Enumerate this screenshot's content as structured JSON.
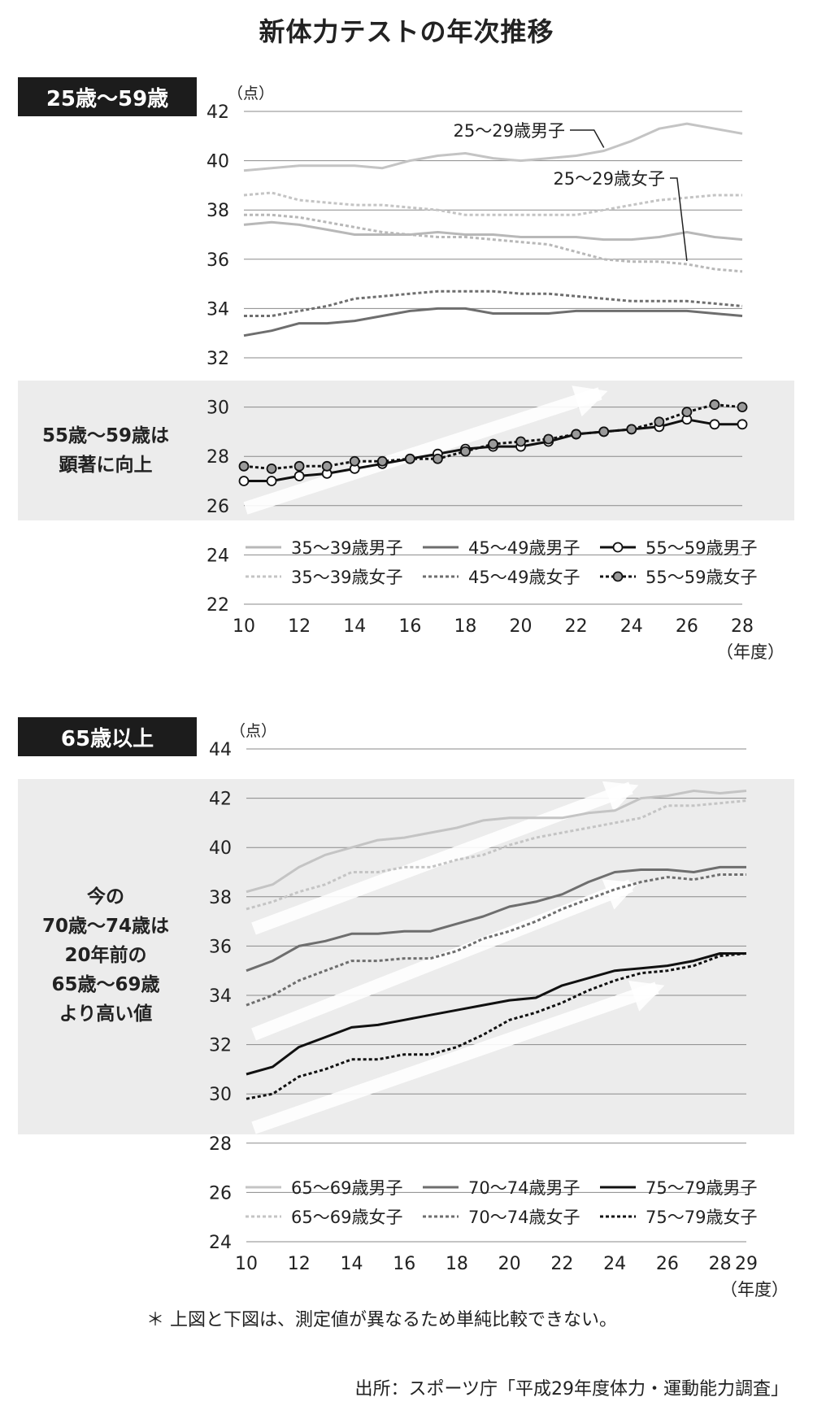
{
  "title": "新体力テストの年次推移",
  "note": "＊ 上図と下図は、測定値が異なるため単純比較できない。",
  "source": "出所：スポーツ庁「平成29年度体力・運動能力調査」",
  "chart_data": [
    {
      "type": "line",
      "panel_label": "25歳〜59歳",
      "callout": [
        "55歳〜59歳は",
        "顕著に向上"
      ],
      "ylabel": "（点）",
      "xlabel": "（年度）",
      "ylim": [
        22,
        42
      ],
      "yticks": [
        22,
        24,
        26,
        28,
        30,
        32,
        34,
        36,
        38,
        40,
        42
      ],
      "x": [
        10,
        11,
        12,
        13,
        14,
        15,
        16,
        17,
        18,
        19,
        20,
        21,
        22,
        23,
        24,
        25,
        26,
        27,
        28
      ],
      "xticks": [
        10,
        12,
        14,
        16,
        18,
        20,
        22,
        24,
        26,
        28
      ],
      "series": [
        {
          "name": "35〜39歳男子",
          "color": "#b8b8b8",
          "dash": "solid",
          "marker": "none",
          "values": [
            37.4,
            37.5,
            37.4,
            37.2,
            37.0,
            37.0,
            37.0,
            37.1,
            37.0,
            37.0,
            36.9,
            36.9,
            36.9,
            36.8,
            36.8,
            36.9,
            37.1,
            36.9,
            36.8
          ]
        },
        {
          "name": "45〜49歳男子",
          "color": "#6e6e6e",
          "dash": "solid",
          "marker": "none",
          "values": [
            32.9,
            33.1,
            33.4,
            33.4,
            33.5,
            33.7,
            33.9,
            34.0,
            34.0,
            33.8,
            33.8,
            33.8,
            33.9,
            33.9,
            33.9,
            33.9,
            33.9,
            33.8,
            33.7
          ]
        },
        {
          "name": "55〜59歳男子",
          "color": "#111111",
          "dash": "solid",
          "marker": "open",
          "values": [
            27.0,
            27.0,
            27.2,
            27.3,
            27.5,
            27.7,
            27.9,
            28.1,
            28.3,
            28.4,
            28.4,
            28.6,
            28.9,
            29.0,
            29.1,
            29.2,
            29.5,
            29.3,
            29.3
          ]
        },
        {
          "name": "35〜39歳女子",
          "color": "#c4c4c4",
          "dash": "dotted",
          "marker": "none",
          "values": [
            38.6,
            38.7,
            38.4,
            38.3,
            38.2,
            38.2,
            38.1,
            38.0,
            37.8,
            37.8,
            37.8,
            37.8,
            37.8,
            38.0,
            38.2,
            38.4,
            38.5,
            38.6,
            38.6
          ]
        },
        {
          "name": "45〜49歳女子",
          "color": "#6e6e6e",
          "dash": "dotted",
          "marker": "none",
          "values": [
            33.7,
            33.7,
            33.9,
            34.1,
            34.4,
            34.5,
            34.6,
            34.7,
            34.7,
            34.7,
            34.6,
            34.6,
            34.5,
            34.4,
            34.3,
            34.3,
            34.3,
            34.2,
            34.1
          ]
        },
        {
          "name": "55〜59歳女子",
          "color": "#111111",
          "dash": "dotted",
          "marker": "filled",
          "values": [
            27.6,
            27.5,
            27.6,
            27.6,
            27.8,
            27.8,
            27.9,
            27.9,
            28.2,
            28.5,
            28.6,
            28.7,
            28.9,
            29.0,
            29.1,
            29.4,
            29.8,
            30.1,
            30.0
          ]
        },
        {
          "name": "25〜29歳男子",
          "color": "#c4c4c4",
          "dash": "solid",
          "marker": "none",
          "values": [
            39.6,
            39.7,
            39.8,
            39.8,
            39.8,
            39.7,
            40.0,
            40.2,
            40.3,
            40.1,
            40.0,
            40.1,
            40.2,
            40.4,
            40.8,
            41.3,
            41.5,
            41.3,
            41.1
          ]
        },
        {
          "name": "25〜29歳女子",
          "color": "#b8b8b8",
          "dash": "dotted",
          "marker": "none",
          "values": [
            37.8,
            37.8,
            37.7,
            37.5,
            37.3,
            37.1,
            37.0,
            36.9,
            36.9,
            36.8,
            36.7,
            36.6,
            36.3,
            36.0,
            35.9,
            35.9,
            35.8,
            35.6,
            35.5
          ]
        }
      ],
      "legend": [
        "35〜39歳男子",
        "45〜49歳男子",
        "55〜59歳男子",
        "35〜39歳女子",
        "45〜49歳女子",
        "55〜59歳女子"
      ],
      "annotations": [
        {
          "text": "25〜29歳男子",
          "series": "25〜29歳男子"
        },
        {
          "text": "25〜29歳女子",
          "series": "25〜29歳女子"
        }
      ]
    },
    {
      "type": "line",
      "panel_label": "65歳以上",
      "callout": [
        "今の",
        "70歳〜74歳は",
        "20年前の",
        "65歳〜69歳",
        "より高い値"
      ],
      "ylabel": "（点）",
      "xlabel": "（年度）",
      "ylim": [
        24,
        44
      ],
      "yticks": [
        24,
        26,
        28,
        30,
        32,
        34,
        36,
        38,
        40,
        42,
        44
      ],
      "x": [
        10,
        11,
        12,
        13,
        14,
        15,
        16,
        17,
        18,
        19,
        20,
        21,
        22,
        23,
        24,
        25,
        26,
        27,
        28,
        29
      ],
      "xticks": [
        10,
        12,
        14,
        16,
        18,
        20,
        22,
        24,
        26,
        28,
        29
      ],
      "series": [
        {
          "name": "65〜69歳男子",
          "color": "#c4c4c4",
          "dash": "solid",
          "marker": "none",
          "values": [
            38.2,
            38.5,
            39.2,
            39.7,
            40.0,
            40.3,
            40.4,
            40.6,
            40.8,
            41.1,
            41.2,
            41.2,
            41.2,
            41.4,
            41.5,
            42.0,
            42.1,
            42.3,
            42.2,
            42.3
          ]
        },
        {
          "name": "70〜74歳男子",
          "color": "#6e6e6e",
          "dash": "solid",
          "marker": "none",
          "values": [
            35.0,
            35.4,
            36.0,
            36.2,
            36.5,
            36.5,
            36.6,
            36.6,
            36.9,
            37.2,
            37.6,
            37.8,
            38.1,
            38.6,
            39.0,
            39.1,
            39.1,
            39.0,
            39.2,
            39.2
          ]
        },
        {
          "name": "75〜79歳男子",
          "color": "#111111",
          "dash": "solid",
          "marker": "none",
          "values": [
            30.8,
            31.1,
            31.9,
            32.3,
            32.7,
            32.8,
            33.0,
            33.2,
            33.4,
            33.6,
            33.8,
            33.9,
            34.4,
            34.7,
            35.0,
            35.1,
            35.2,
            35.4,
            35.7,
            35.7
          ]
        },
        {
          "name": "65〜69歳女子",
          "color": "#c4c4c4",
          "dash": "dotted",
          "marker": "none",
          "values": [
            37.5,
            37.8,
            38.2,
            38.5,
            39.0,
            39.0,
            39.2,
            39.2,
            39.5,
            39.7,
            40.1,
            40.4,
            40.6,
            40.8,
            41.0,
            41.2,
            41.7,
            41.7,
            41.8,
            41.9
          ]
        },
        {
          "name": "70〜74歳女子",
          "color": "#6e6e6e",
          "dash": "dotted",
          "marker": "none",
          "values": [
            33.6,
            34.0,
            34.6,
            35.0,
            35.4,
            35.4,
            35.5,
            35.5,
            35.8,
            36.3,
            36.6,
            37.0,
            37.5,
            37.9,
            38.3,
            38.6,
            38.8,
            38.7,
            38.9,
            38.9
          ]
        },
        {
          "name": "75〜79歳女子",
          "color": "#111111",
          "dash": "dotted",
          "marker": "none",
          "values": [
            29.8,
            30.0,
            30.7,
            31.0,
            31.4,
            31.4,
            31.6,
            31.6,
            31.9,
            32.4,
            33.0,
            33.3,
            33.7,
            34.2,
            34.6,
            34.9,
            35.0,
            35.2,
            35.6,
            35.7
          ]
        }
      ],
      "legend": [
        "65〜69歳男子",
        "70〜74歳男子",
        "75〜79歳男子",
        "65〜69歳女子",
        "70〜74歳女子",
        "75〜79歳女子"
      ]
    }
  ]
}
